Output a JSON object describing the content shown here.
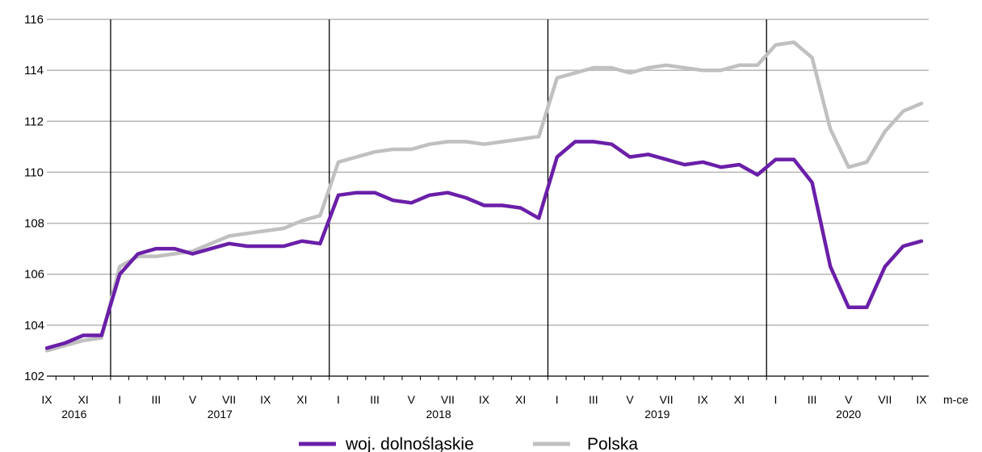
{
  "chart_data": {
    "type": "line",
    "title": "",
    "xlabel": "",
    "ylabel": "",
    "x_unit_label": "m-ce",
    "ylim": [
      102,
      116
    ],
    "y_ticks": [
      102,
      104,
      106,
      108,
      110,
      112,
      114,
      116
    ],
    "grid": true,
    "legend_position": "bottom",
    "months": [
      "2016-09",
      "2016-10",
      "2016-11",
      "2016-12",
      "2017-01",
      "2017-02",
      "2017-03",
      "2017-04",
      "2017-05",
      "2017-06",
      "2017-07",
      "2017-08",
      "2017-09",
      "2017-10",
      "2017-11",
      "2017-12",
      "2018-01",
      "2018-02",
      "2018-03",
      "2018-04",
      "2018-05",
      "2018-06",
      "2018-07",
      "2018-08",
      "2018-09",
      "2018-10",
      "2018-11",
      "2018-12",
      "2019-01",
      "2019-02",
      "2019-03",
      "2019-04",
      "2019-05",
      "2019-06",
      "2019-07",
      "2019-08",
      "2019-09",
      "2019-10",
      "2019-11",
      "2019-12",
      "2020-01",
      "2020-02",
      "2020-03",
      "2020-04",
      "2020-05",
      "2020-06",
      "2020-07",
      "2020-08",
      "2020-09"
    ],
    "x_tick_labels": [
      {
        "month": "2016-09",
        "label": "IX"
      },
      {
        "month": "2016-11",
        "label": "XI"
      },
      {
        "month": "2017-01",
        "label": "I"
      },
      {
        "month": "2017-03",
        "label": "III"
      },
      {
        "month": "2017-05",
        "label": "V"
      },
      {
        "month": "2017-07",
        "label": "VII"
      },
      {
        "month": "2017-09",
        "label": "IX"
      },
      {
        "month": "2017-11",
        "label": "XI"
      },
      {
        "month": "2018-01",
        "label": "I"
      },
      {
        "month": "2018-03",
        "label": "III"
      },
      {
        "month": "2018-05",
        "label": "V"
      },
      {
        "month": "2018-07",
        "label": "VII"
      },
      {
        "month": "2018-09",
        "label": "IX"
      },
      {
        "month": "2018-11",
        "label": "XI"
      },
      {
        "month": "2019-01",
        "label": "I"
      },
      {
        "month": "2019-03",
        "label": "III"
      },
      {
        "month": "2019-05",
        "label": "V"
      },
      {
        "month": "2019-07",
        "label": "VII"
      },
      {
        "month": "2019-09",
        "label": "IX"
      },
      {
        "month": "2019-11",
        "label": "XI"
      },
      {
        "month": "2020-01",
        "label": "I"
      },
      {
        "month": "2020-03",
        "label": "III"
      },
      {
        "month": "2020-05",
        "label": "V"
      },
      {
        "month": "2020-07",
        "label": "VII"
      },
      {
        "month": "2020-09",
        "label": "IX"
      }
    ],
    "years": [
      {
        "label": "2016",
        "from": "2016-09",
        "to": "2016-12"
      },
      {
        "label": "2017",
        "from": "2017-01",
        "to": "2017-12"
      },
      {
        "label": "2018",
        "from": "2018-01",
        "to": "2018-12"
      },
      {
        "label": "2019",
        "from": "2019-01",
        "to": "2019-12"
      },
      {
        "label": "2020",
        "from": "2020-01",
        "to": "2020-09"
      }
    ],
    "series": [
      {
        "name": "Polska",
        "color": "#c0c0c0",
        "values": [
          103.0,
          103.2,
          103.4,
          103.5,
          106.3,
          106.7,
          106.7,
          106.8,
          106.9,
          107.2,
          107.5,
          107.6,
          107.7,
          107.8,
          108.1,
          108.3,
          110.4,
          110.6,
          110.8,
          110.9,
          110.9,
          111.1,
          111.2,
          111.2,
          111.1,
          111.2,
          111.3,
          111.4,
          113.7,
          113.9,
          114.1,
          114.1,
          113.9,
          114.1,
          114.2,
          114.1,
          114.0,
          114.0,
          114.2,
          114.2,
          115.0,
          115.1,
          114.5,
          111.7,
          110.2,
          110.4,
          111.6,
          112.4,
          112.7
        ]
      },
      {
        "name": "woj. dolnośląskie",
        "color": "#6a1fa8",
        "values": [
          103.1,
          103.3,
          103.6,
          103.6,
          106.0,
          106.8,
          107.0,
          107.0,
          106.8,
          107.0,
          107.2,
          107.1,
          107.1,
          107.1,
          107.3,
          107.2,
          109.1,
          109.2,
          109.2,
          108.9,
          108.8,
          109.1,
          109.2,
          109.0,
          108.7,
          108.7,
          108.6,
          108.2,
          110.6,
          111.2,
          111.2,
          111.1,
          110.6,
          110.7,
          110.5,
          110.3,
          110.4,
          110.2,
          110.3,
          109.9,
          110.5,
          110.5,
          109.6,
          106.3,
          104.7,
          104.7,
          106.3,
          107.1,
          107.3
        ]
      }
    ]
  }
}
